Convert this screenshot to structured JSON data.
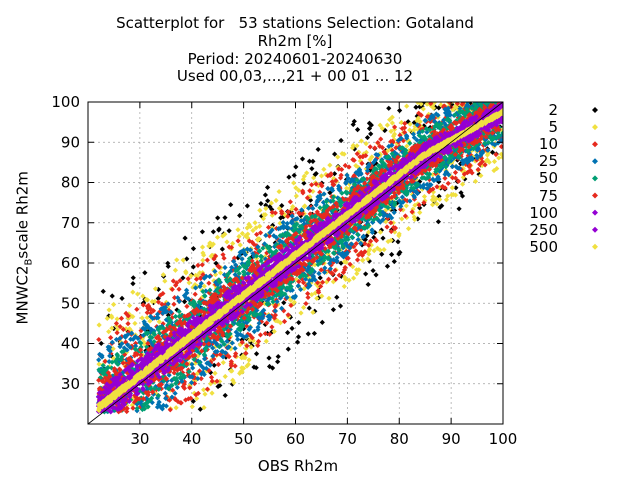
{
  "chart_data": {
    "type": "scatter",
    "title_lines": [
      "Scatterplot for   53 stations Selection: Gotaland",
      "Rh2m [%]",
      "Period: 20240601-20240630",
      "Used 00,03,...,21 + 00 01 ... 12"
    ],
    "xlabel": "OBS Rh2m",
    "ylabel_main": "MNWC2",
    "ylabel_sub": "B",
    "ylabel_tail": "scale Rh2m",
    "xlim": [
      20,
      100
    ],
    "ylim": [
      20,
      100
    ],
    "xticks": [
      30,
      40,
      50,
      60,
      70,
      80,
      90,
      100
    ],
    "yticks": [
      30,
      40,
      50,
      60,
      70,
      80,
      90,
      100
    ],
    "grid": true,
    "legend_placement": "right",
    "density_bands": [
      {
        "name": "2",
        "color": "#000000",
        "width": 31
      },
      {
        "name": "5",
        "color": "#f0e040",
        "width": 24
      },
      {
        "name": "10",
        "color": "#e62a1e",
        "width": 19
      },
      {
        "name": "25",
        "color": "#0072b2",
        "width": 14
      },
      {
        "name": "50",
        "color": "#009e73",
        "width": 10
      },
      {
        "name": "75",
        "color": "#e62a1e",
        "width": 7
      },
      {
        "name": "100",
        "color": "#9400d3",
        "width": 4.6
      },
      {
        "name": "250",
        "color": "#9400d3",
        "width": 2.2
      },
      {
        "name": "500",
        "color": "#f0e040",
        "width": 0.8
      }
    ]
  }
}
